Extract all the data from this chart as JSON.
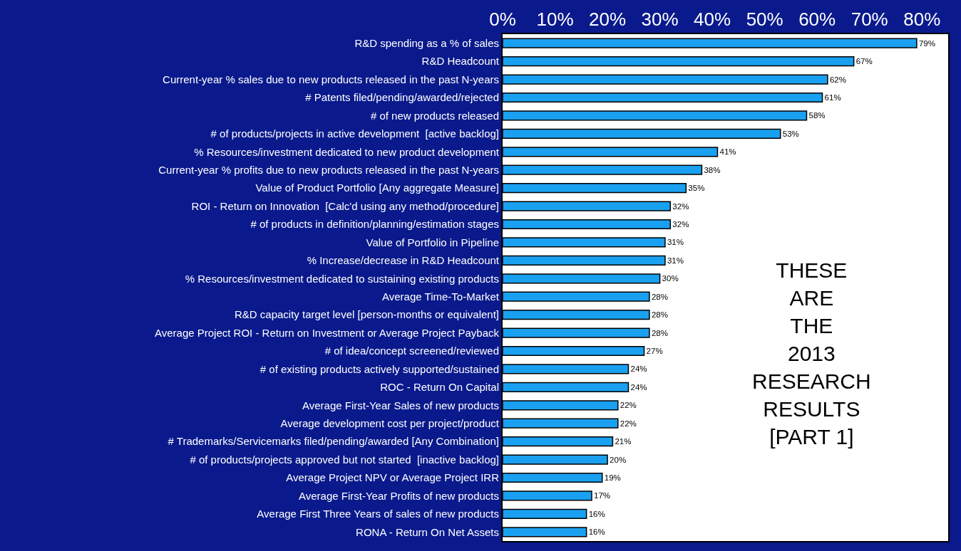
{
  "chart_data": {
    "type": "bar",
    "orientation": "horizontal",
    "categories": [
      "R&D spending as a % of sales",
      "R&D Headcount",
      "Current-year % sales due to new products released in the past N-years",
      "# Patents filed/pending/awarded/rejected",
      "# of new products released",
      "# of products/projects in active development  [active backlog]",
      "% Resources/investment dedicated to new product development",
      "Current-year % profits due to new products released in the past N-years",
      "Value of Product Portfolio [Any aggregate Measure]",
      "ROI - Return on Innovation  [Calc'd using any method/procedure]",
      "# of products in definition/planning/estimation stages",
      "Value of Portfolio in Pipeline",
      "% Increase/decrease in R&D Headcount",
      "% Resources/investment dedicated to sustaining existing products",
      "Average Time-To-Market",
      "R&D capacity target level [person-months or equivalent]",
      "Average Project ROI - Return on Investment or Average Project Payback",
      "# of idea/concept screened/reviewed",
      "# of existing products actively supported/sustained",
      "ROC - Return On Capital",
      "Average First-Year Sales of new products",
      "Average development cost per project/product",
      "# Trademarks/Servicemarks filed/pending/awarded [Any Combination]",
      "# of products/projects approved but not started  [inactive backlog]",
      "Average Project NPV or Average Project IRR",
      "Average First-Year Profits of new products",
      "Average First Three Years of sales of new products",
      "RONA - Return On Net Assets"
    ],
    "values": [
      79,
      67,
      62,
      61,
      58,
      53,
      41,
      38,
      35,
      32,
      32,
      31,
      31,
      30,
      28,
      28,
      28,
      27,
      24,
      24,
      22,
      22,
      21,
      20,
      19,
      17,
      16,
      16
    ],
    "value_labels": [
      "79%",
      "67%",
      "62%",
      "61%",
      "58%",
      "53%",
      "41%",
      "38%",
      "35%",
      "32%",
      "32%",
      "31%",
      "31%",
      "30%",
      "28%",
      "28%",
      "28%",
      "27%",
      "24%",
      "24%",
      "22%",
      "22%",
      "21%",
      "20%",
      "19%",
      "17%",
      "16%",
      "16%"
    ],
    "color": "#1aa0f0",
    "xlim": [
      0,
      85
    ],
    "xticks": [
      {
        "value": 0,
        "label": "0%"
      },
      {
        "value": 10,
        "label": "10%"
      },
      {
        "value": 20,
        "label": "20%"
      },
      {
        "value": 30,
        "label": "30%"
      },
      {
        "value": 40,
        "label": "40%"
      },
      {
        "value": 50,
        "label": "50%"
      },
      {
        "value": 60,
        "label": "60%"
      },
      {
        "value": 70,
        "label": "70%"
      },
      {
        "value": 80,
        "label": "80%"
      }
    ],
    "annotations": [
      "THESE\nARE\nTHE\n2013\nRESEARCH\nRESULTS\n[PART 1]"
    ]
  }
}
